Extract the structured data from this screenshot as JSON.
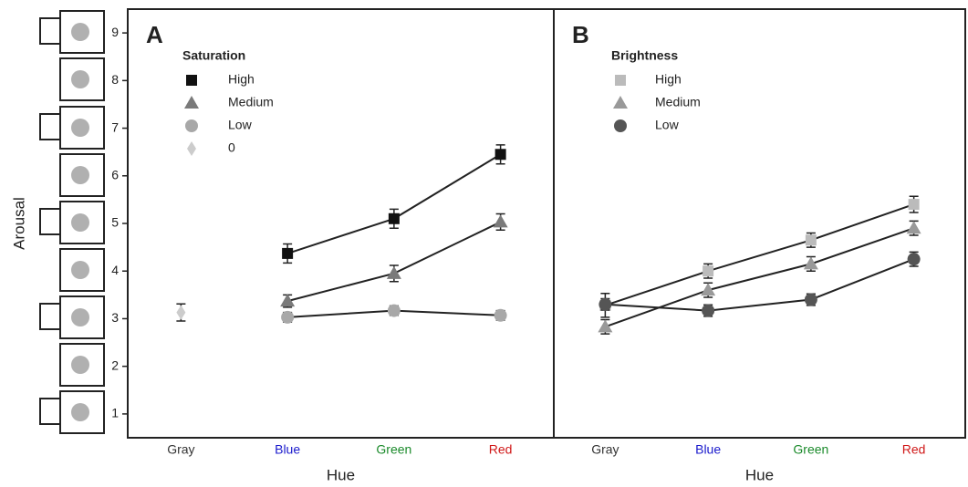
{
  "chart_data": [
    {
      "type": "line",
      "panel_label": "A",
      "ylabel": "Arousal",
      "xlabel": "Hue",
      "legend_title": "Saturation",
      "categories": [
        "Gray",
        "Blue",
        "Green",
        "Red"
      ],
      "category_colors": [
        "#333333",
        "#1a1acc",
        "#1a8a2a",
        "#d01818"
      ],
      "ylim": [
        0.5,
        9.5
      ],
      "yticks": [
        1,
        2,
        3,
        4,
        5,
        6,
        7,
        8,
        9
      ],
      "series": [
        {
          "name": "High",
          "marker": "square",
          "color": "#111111",
          "values": [
            null,
            4.37,
            5.1,
            6.45
          ],
          "errors": [
            null,
            0.2,
            0.2,
            0.2
          ]
        },
        {
          "name": "Medium",
          "marker": "triangle",
          "color": "#7a7a7a",
          "values": [
            null,
            3.37,
            3.95,
            5.03
          ],
          "errors": [
            null,
            0.13,
            0.17,
            0.17
          ]
        },
        {
          "name": "Low",
          "marker": "circle",
          "color": "#a8a8a8",
          "values": [
            null,
            3.03,
            3.17,
            3.07
          ],
          "errors": [
            null,
            0.1,
            0.1,
            0.1
          ]
        },
        {
          "name": "0",
          "marker": "diamond",
          "color": "#cccccc",
          "values": [
            3.13,
            null,
            null,
            null
          ],
          "errors": [
            0.18,
            null,
            null,
            null
          ]
        }
      ]
    },
    {
      "type": "line",
      "panel_label": "B",
      "xlabel": "Hue",
      "legend_title": "Brightness",
      "categories": [
        "Gray",
        "Blue",
        "Green",
        "Red"
      ],
      "category_colors": [
        "#333333",
        "#1a1acc",
        "#1a8a2a",
        "#d01818"
      ],
      "ylim": [
        0.5,
        9.5
      ],
      "series": [
        {
          "name": "High",
          "marker": "square",
          "color": "#bbbbbb",
          "values": [
            3.28,
            4.0,
            4.65,
            5.4
          ],
          "errors": [
            0.25,
            0.15,
            0.15,
            0.17
          ]
        },
        {
          "name": "Medium",
          "marker": "triangle",
          "color": "#999999",
          "values": [
            2.83,
            3.6,
            4.15,
            4.9
          ],
          "errors": [
            0.15,
            0.15,
            0.15,
            0.15
          ]
        },
        {
          "name": "Low",
          "marker": "circle",
          "color": "#555555",
          "values": [
            3.3,
            3.17,
            3.4,
            4.25
          ],
          "errors": [
            0.12,
            0.12,
            0.12,
            0.15
          ]
        }
      ]
    }
  ]
}
